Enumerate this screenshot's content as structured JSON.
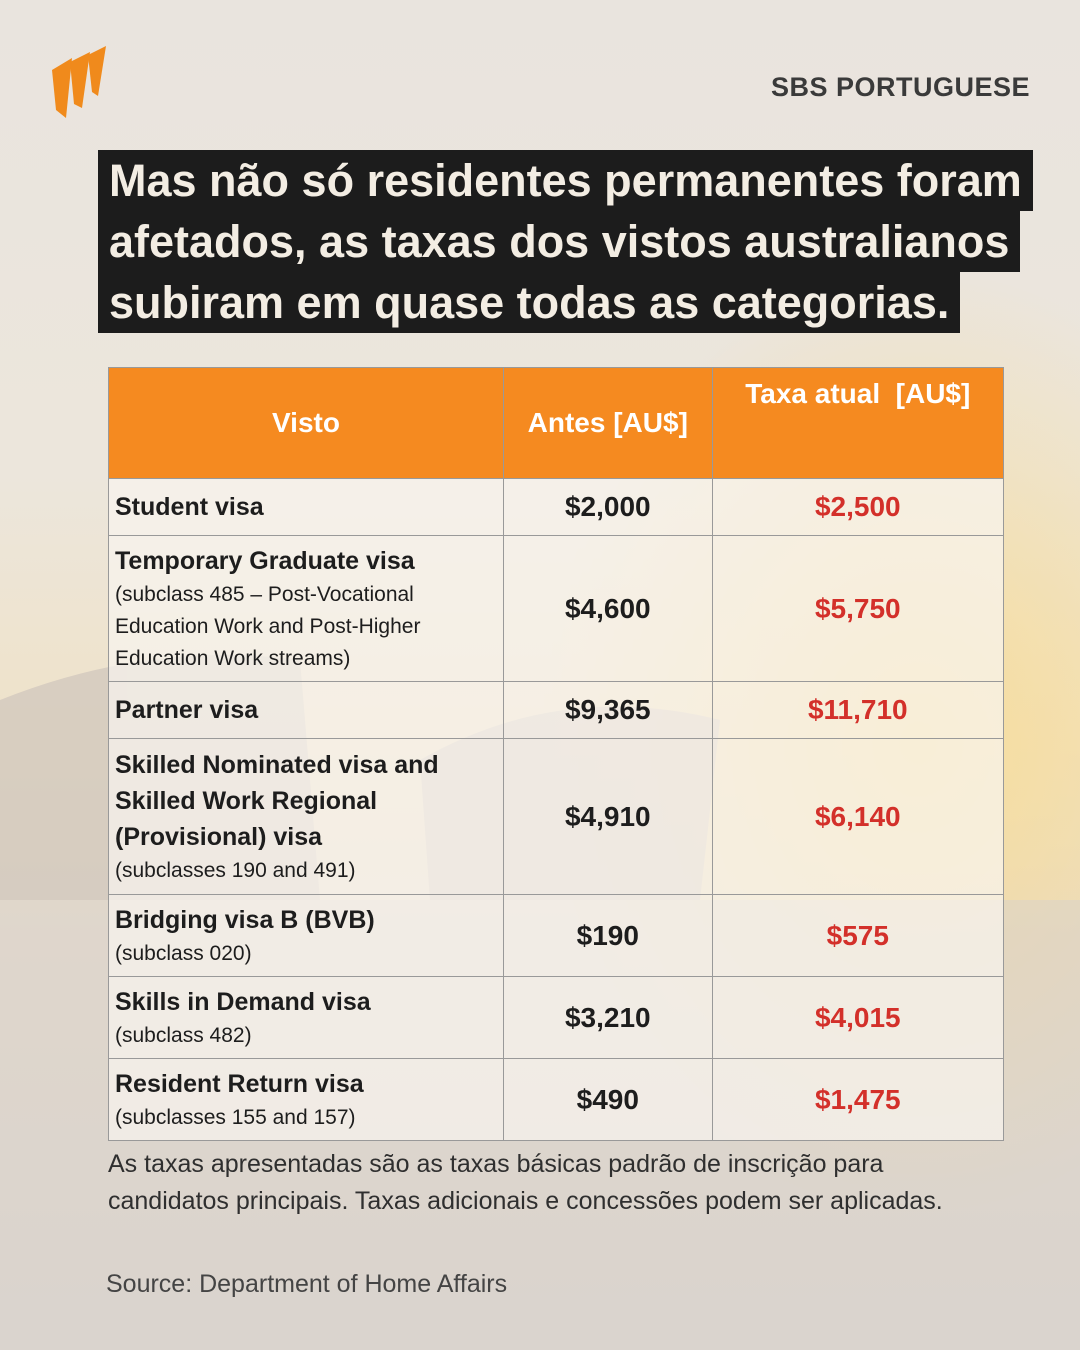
{
  "brand": "SBS PORTUGUESE",
  "headline": {
    "lines": [
      "Mas não só residentes permanentes foram",
      "afetados, as taxas dos vistos australianos",
      "subiram em quase todas as categorias."
    ]
  },
  "table": {
    "header": [
      "Visto",
      "Antes [AU$]",
      "Taxa atual  [AU$]"
    ],
    "rows": [
      {
        "name": "Student visa",
        "before": "$2,000",
        "after": "$2,500"
      },
      {
        "name": "Temporary Graduate visa",
        "detail": "(subclass 485 – Post-Vocational Education Work and Post-Higher Education Work streams)",
        "before": "$4,600",
        "after": "$5,750"
      },
      {
        "name": "Partner visa",
        "before": "$9,365",
        "after": "$11,710"
      },
      {
        "name": "Skilled Nominated visa and Skilled Work Regional (Provisional) visa",
        "detail": "(subclasses 190 and 491)",
        "before": "$4,910",
        "after": "$6,140"
      },
      {
        "name": "Bridging visa B (BVB)",
        "detail": "(subclass 020)",
        "before": "$190",
        "after": "$575"
      },
      {
        "name": "Skills in Demand visa",
        "detail": "(subclass 482)",
        "before": "$3,210",
        "after": "$4,015"
      },
      {
        "name": "Resident Return visa",
        "detail": "(subclasses 155 and 157)",
        "before": "$490",
        "after": "$1,475"
      }
    ]
  },
  "note": "As taxas apresentadas são as taxas básicas padrão de inscrição para candidatos principais. Taxas adicionais e concessões podem ser aplicadas.",
  "source": "Source: Department of Home Affairs"
}
